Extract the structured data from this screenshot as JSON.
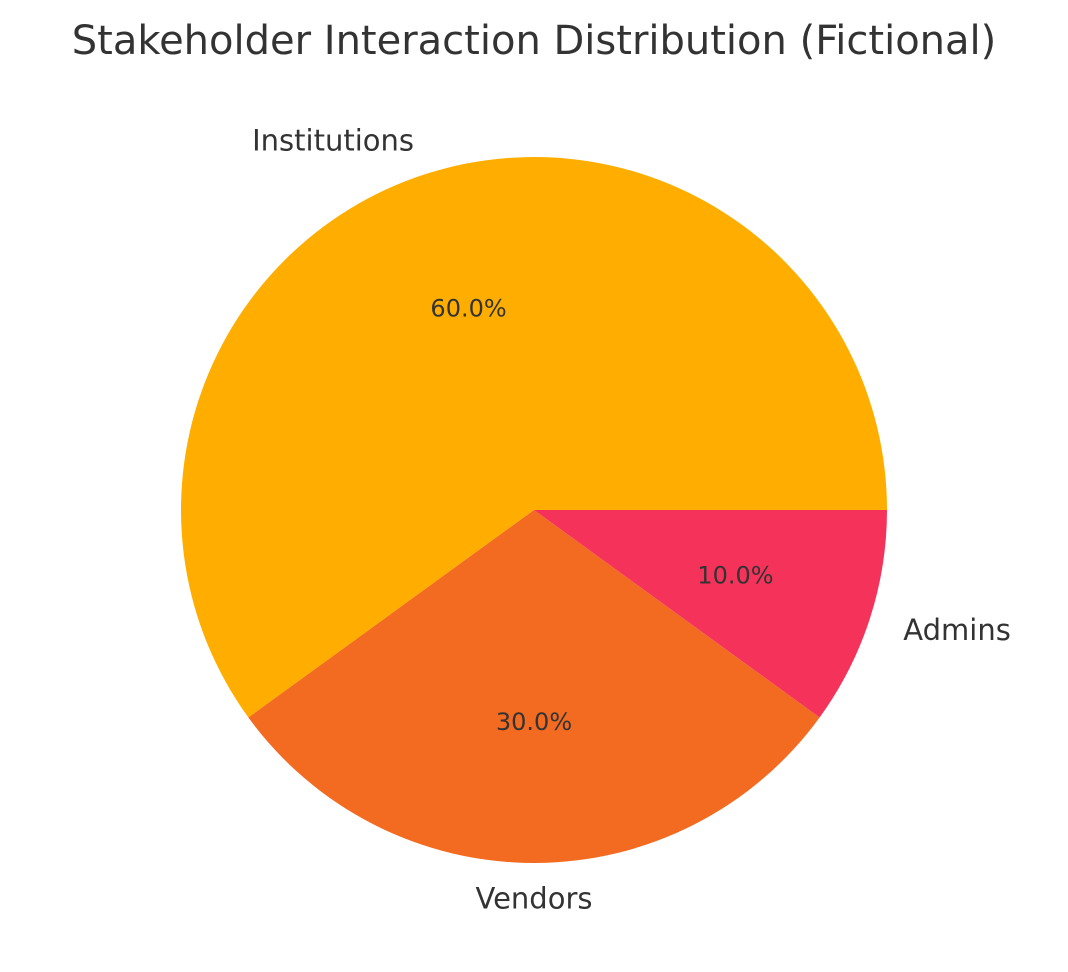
{
  "chart_data": {
    "type": "pie",
    "title": "Stakeholder Interaction Distribution (Fictional)",
    "slices": [
      {
        "label": "Institutions",
        "value": 60,
        "value_label": "60.0%",
        "color": "#ffae00"
      },
      {
        "label": "Vendors",
        "value": 30,
        "value_label": "30.0%",
        "color": "#f26b21"
      },
      {
        "label": "Admins",
        "value": 10,
        "value_label": "10.0%",
        "color": "#f5335a"
      }
    ],
    "start_angle_deg": 0,
    "direction": "counterclockwise"
  }
}
